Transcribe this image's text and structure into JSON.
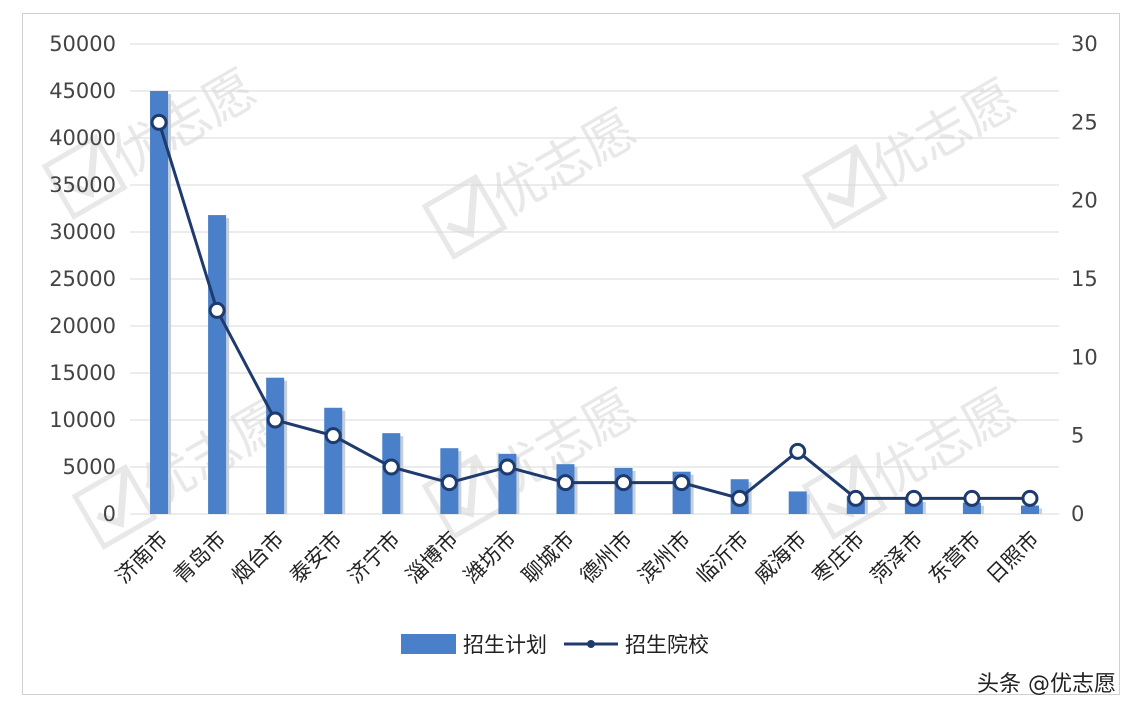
{
  "chart_data": {
    "type": "bar",
    "categories": [
      "济南市",
      "青岛市",
      "烟台市",
      "泰安市",
      "济宁市",
      "淄博市",
      "潍坊市",
      "聊城市",
      "德州市",
      "滨州市",
      "临沂市",
      "威海市",
      "枣庄市",
      "菏泽市",
      "东营市",
      "日照市"
    ],
    "series": [
      {
        "name": "招生计划",
        "type": "bar",
        "axis": "left",
        "color": "#4a7fc9",
        "values": [
          45000,
          31800,
          14500,
          11300,
          8600,
          7000,
          6400,
          5300,
          4900,
          4500,
          3700,
          2400,
          1900,
          1600,
          1200,
          900
        ]
      },
      {
        "name": "招生院校",
        "type": "line",
        "axis": "right",
        "color": "#1f3b6e",
        "values": [
          25,
          13,
          6,
          5,
          3,
          2,
          3,
          2,
          2,
          2,
          1,
          4,
          1,
          1,
          1,
          1
        ]
      }
    ],
    "y_left": {
      "min": 0,
      "max": 50000,
      "ticks": [
        0,
        5000,
        10000,
        15000,
        20000,
        25000,
        30000,
        35000,
        40000,
        45000,
        50000
      ]
    },
    "y_right": {
      "min": 0,
      "max": 30,
      "ticks": [
        0,
        5,
        10,
        15,
        20,
        25,
        30
      ]
    },
    "grid": true,
    "legend": "bottom",
    "watermark_text": "优志愿"
  },
  "footer": {
    "credit": "头条 @优志愿"
  }
}
